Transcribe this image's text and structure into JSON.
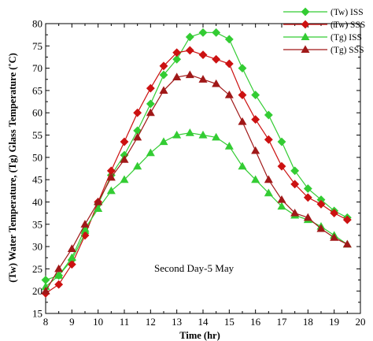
{
  "chart_data": {
    "type": "line",
    "title": "",
    "xlabel": "Time (hr)",
    "ylabel": "(Tw) Water Temperature, (Tg) Glass Temperature  (˚C)",
    "xlim": [
      8,
      20
    ],
    "ylim": [
      15,
      80
    ],
    "xticks": [
      8,
      9,
      10,
      11,
      12,
      13,
      14,
      15,
      16,
      17,
      18,
      19,
      20
    ],
    "yticks": [
      15,
      20,
      25,
      30,
      35,
      40,
      45,
      50,
      55,
      60,
      65,
      70,
      75,
      80
    ],
    "grid": false,
    "legend_position": "top-right",
    "annotation": "Second Day-5 May",
    "series": [
      {
        "name": "(Tw) ISS",
        "color": "#33cc33",
        "marker": "diamond",
        "x": [
          8,
          8.5,
          9,
          9.5,
          10,
          10.5,
          11,
          11.5,
          12,
          12.5,
          13,
          13.5,
          14,
          14.5,
          15,
          15.5,
          16,
          16.5,
          17,
          17.5,
          18,
          18.5,
          19,
          19.5
        ],
        "y": [
          22.5,
          23.5,
          27,
          33,
          39.5,
          46,
          50.5,
          56,
          62,
          68.5,
          72,
          77,
          78,
          78,
          76.5,
          70,
          64,
          59.5,
          53.5,
          47,
          43,
          40.5,
          38,
          36.5
        ]
      },
      {
        "name": "(Tw) SSS",
        "color": "#cc1111",
        "marker": "diamond",
        "x": [
          8,
          8.5,
          9,
          9.5,
          10,
          10.5,
          11,
          11.5,
          12,
          12.5,
          13,
          13.5,
          14,
          14.5,
          15,
          15.5,
          16,
          16.5,
          17,
          17.5,
          18,
          18.5,
          19,
          19.5
        ],
        "y": [
          19.5,
          21.5,
          26,
          32.5,
          40,
          47,
          53.5,
          60,
          65.5,
          70.5,
          73.5,
          74,
          73,
          72,
          71,
          64,
          58.5,
          54,
          48,
          44,
          41,
          39.5,
          37.5,
          36
        ]
      },
      {
        "name": "(Tg) ISS",
        "color": "#33cc33",
        "marker": "triangle",
        "x": [
          8,
          8.5,
          9,
          9.5,
          10,
          10.5,
          11,
          11.5,
          12,
          12.5,
          13,
          13.5,
          14,
          14.5,
          15,
          15.5,
          16,
          16.5,
          17,
          17.5,
          18,
          18.5,
          19,
          19.5
        ],
        "y": [
          21,
          23.5,
          27.5,
          34,
          38.5,
          42.5,
          45,
          48,
          51,
          53.5,
          55,
          55.5,
          55,
          54.5,
          52.5,
          48,
          45,
          42,
          39,
          37,
          36,
          34.5,
          32.5,
          30.5
        ]
      },
      {
        "name": "(Tg) SSS",
        "color": "#a01818",
        "marker": "triangle",
        "x": [
          8,
          8.5,
          9,
          9.5,
          10,
          10.5,
          11,
          11.5,
          12,
          12.5,
          13,
          13.5,
          14,
          14.5,
          15,
          15.5,
          16,
          16.5,
          17,
          17.5,
          18,
          18.5,
          19,
          19.5
        ],
        "y": [
          20,
          25,
          29.5,
          35,
          40,
          45.5,
          49.5,
          54.5,
          60,
          65,
          68,
          68.5,
          67.5,
          66.5,
          64,
          58,
          51.5,
          45,
          40.5,
          37.5,
          36.5,
          34,
          32,
          30.5
        ]
      }
    ]
  }
}
